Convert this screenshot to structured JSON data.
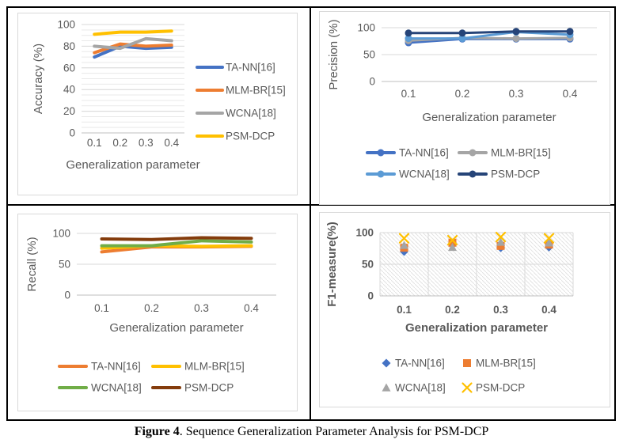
{
  "figure": {
    "caption_label": "Figure 4",
    "caption_text": ". Sequence Generalization Parameter Analysis for PSM-DCP"
  },
  "style": {
    "chart_text_color": "#595959",
    "major_grid_color": "#D9D9D9",
    "minor_grid_color": "#E9E9E9",
    "axis_line_color": "#BFBFBF",
    "hatch_color": "#E2E2E2",
    "chart_border_color": "#D9D9D9",
    "frame_border_color": "#000000"
  },
  "chart_data": [
    {
      "id": "accuracy",
      "type": "line",
      "title": "",
      "xlabel": "Generalization parameter",
      "ylabel": "Accuracy (%)",
      "categories": [
        "0.1",
        "0.2",
        "0.3",
        "0.4"
      ],
      "y_ticks": [
        0,
        20,
        40,
        60,
        80,
        100
      ],
      "ylim": [
        0,
        100
      ],
      "grid": "horizontal-minor",
      "legend_position": "right",
      "series": [
        {
          "name": "TA-NN[16]",
          "color": "#4472C4",
          "values": [
            70,
            80,
            78,
            79
          ]
        },
        {
          "name": "MLM-BR[15]",
          "color": "#ED7D31",
          "values": [
            74,
            82,
            80,
            81
          ]
        },
        {
          "name": "WCNA[18]",
          "color": "#A5A5A5",
          "values": [
            80,
            78,
            87,
            85
          ]
        },
        {
          "name": "PSM-DCP",
          "color": "#FFC000",
          "values": [
            91,
            93,
            93,
            94
          ]
        }
      ]
    },
    {
      "id": "precision",
      "type": "line",
      "markers": "circle",
      "title": "",
      "xlabel": "Generalization parameter",
      "ylabel": "Precision (%)",
      "categories": [
        "0.1",
        "0.2",
        "0.3",
        "0.4"
      ],
      "y_ticks": [
        0,
        50,
        100
      ],
      "ylim": [
        0,
        100
      ],
      "grid": "horizontal",
      "legend_position": "bottom",
      "series": [
        {
          "name": "TA-NN[16]",
          "color": "#4472C4",
          "values": [
            72,
            79,
            79,
            79
          ]
        },
        {
          "name": "MLM-BR[15]",
          "color": "#A5A5A5",
          "values": [
            76,
            81,
            80,
            81
          ]
        },
        {
          "name": "WCNA[18]",
          "color": "#5B9BD5",
          "values": [
            80,
            80,
            92,
            87
          ]
        },
        {
          "name": "PSM-DCP",
          "color": "#264478",
          "values": [
            90,
            90,
            93,
            93
          ]
        }
      ]
    },
    {
      "id": "recall",
      "type": "line",
      "title": "",
      "xlabel": "Generalization parameter",
      "ylabel": "Recall (%)",
      "categories": [
        "0.1",
        "0.2",
        "0.3",
        "0.4"
      ],
      "y_ticks": [
        0,
        50,
        100
      ],
      "ylim": [
        0,
        100
      ],
      "grid": "horizontal",
      "legend_position": "bottom",
      "series": [
        {
          "name": "TA-NN[16]",
          "color": "#ED7D31",
          "values": [
            70,
            78,
            78,
            79
          ]
        },
        {
          "name": "MLM-BR[15]",
          "color": "#FFC000",
          "values": [
            76,
            80,
            79,
            80
          ]
        },
        {
          "name": "WCNA[18]",
          "color": "#70AD47",
          "values": [
            80,
            80,
            88,
            86
          ]
        },
        {
          "name": "PSM-DCP",
          "color": "#843C0C",
          "values": [
            91,
            90,
            93,
            92
          ]
        }
      ]
    },
    {
      "id": "f1",
      "type": "scatter",
      "title": "",
      "xlabel": "Generalization parameter",
      "ylabel": "F1-measure(%)",
      "bold_labels": true,
      "hatch_fill": true,
      "categories": [
        "0.1",
        "0.2",
        "0.3",
        "0.4"
      ],
      "y_ticks": [
        0,
        50,
        100
      ],
      "ylim": [
        0,
        100
      ],
      "grid": "both",
      "legend_position": "bottom",
      "series": [
        {
          "name": "TA-NN[16]",
          "color": "#4472C4",
          "marker": "diamond",
          "values": [
            70,
            81,
            76,
            77
          ]
        },
        {
          "name": "MLM-BR[15]",
          "color": "#ED7D31",
          "marker": "square",
          "values": [
            76,
            84,
            79,
            81
          ]
        },
        {
          "name": "WCNA[18]",
          "color": "#A5A5A5",
          "marker": "triangle",
          "values": [
            80,
            77,
            85,
            84
          ]
        },
        {
          "name": "PSM-DCP",
          "color": "#FFC000",
          "marker": "x",
          "values": [
            91,
            88,
            93,
            91
          ]
        }
      ]
    }
  ]
}
